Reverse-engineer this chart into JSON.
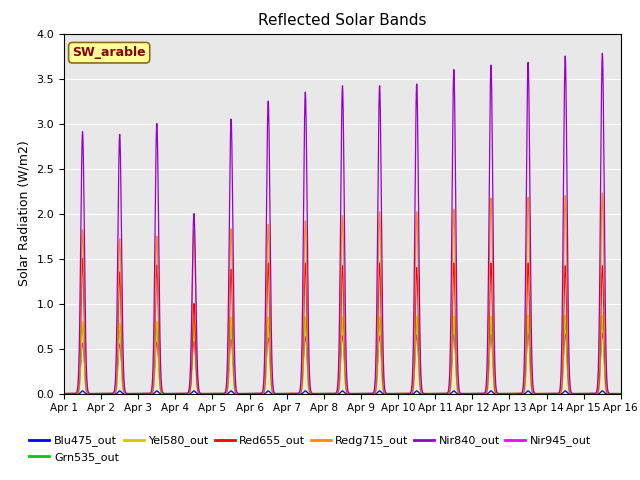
{
  "title": "Reflected Solar Bands",
  "ylabel": "Solar Radiation (W/m2)",
  "xlabel": "",
  "annotation": "SW_arable",
  "annotation_color": "#8B0000",
  "annotation_bg": "#FFFF99",
  "ylim": [
    0,
    4.0
  ],
  "yticks": [
    0.0,
    0.5,
    1.0,
    1.5,
    2.0,
    2.5,
    3.0,
    3.5,
    4.0
  ],
  "num_days": 15,
  "points_per_day": 288,
  "nir840_peaks": [
    2.91,
    2.88,
    3.0,
    2.0,
    3.05,
    3.25,
    3.35,
    3.42,
    3.42,
    3.44,
    3.6,
    3.65,
    3.68,
    3.75,
    3.78
  ],
  "red655_peaks": [
    1.5,
    1.35,
    1.43,
    1.0,
    1.38,
    1.45,
    1.45,
    1.42,
    1.45,
    1.4,
    1.45,
    1.45,
    1.45,
    1.42,
    1.42
  ],
  "redg715_peaks": [
    1.82,
    1.72,
    1.75,
    1.82,
    1.83,
    1.88,
    1.92,
    1.98,
    2.02,
    2.02,
    2.05,
    2.17,
    2.18,
    2.2,
    2.23
  ],
  "grn535_peaks": [
    0.77,
    0.75,
    0.78,
    0.8,
    0.82,
    0.83,
    0.84,
    0.84,
    0.84,
    0.84,
    0.84,
    0.84,
    0.85,
    0.85,
    0.85
  ],
  "yel580_peaks": [
    0.8,
    0.78,
    0.8,
    0.83,
    0.85,
    0.85,
    0.86,
    0.86,
    0.86,
    0.86,
    0.86,
    0.86,
    0.87,
    0.87,
    0.87
  ],
  "blu475_peaks": [
    0.03,
    0.03,
    0.03,
    0.03,
    0.03,
    0.03,
    0.03,
    0.03,
    0.03,
    0.03,
    0.03,
    0.03,
    0.03,
    0.03,
    0.03
  ],
  "nir945_peaks": [
    0.56,
    0.55,
    0.57,
    0.58,
    0.6,
    0.62,
    0.63,
    0.64,
    0.64,
    0.65,
    0.65,
    0.65,
    0.66,
    0.66,
    0.67
  ],
  "colors": {
    "Blu475_out": "#0000FF",
    "Grn535_out": "#00CC00",
    "Yel580_out": "#CCCC00",
    "Red655_out": "#FF0000",
    "Redg715_out": "#FF8C00",
    "Nir840_out": "#9900CC",
    "Nir945_out": "#FF00FF"
  },
  "legend_order": [
    "Blu475_out",
    "Grn535_out",
    "Yel580_out",
    "Red655_out",
    "Redg715_out",
    "Nir840_out",
    "Nir945_out"
  ],
  "background_color": "#E8E8E8",
  "fig_color": "#FFFFFF",
  "figsize": [
    6.4,
    4.8
  ],
  "dpi": 100
}
